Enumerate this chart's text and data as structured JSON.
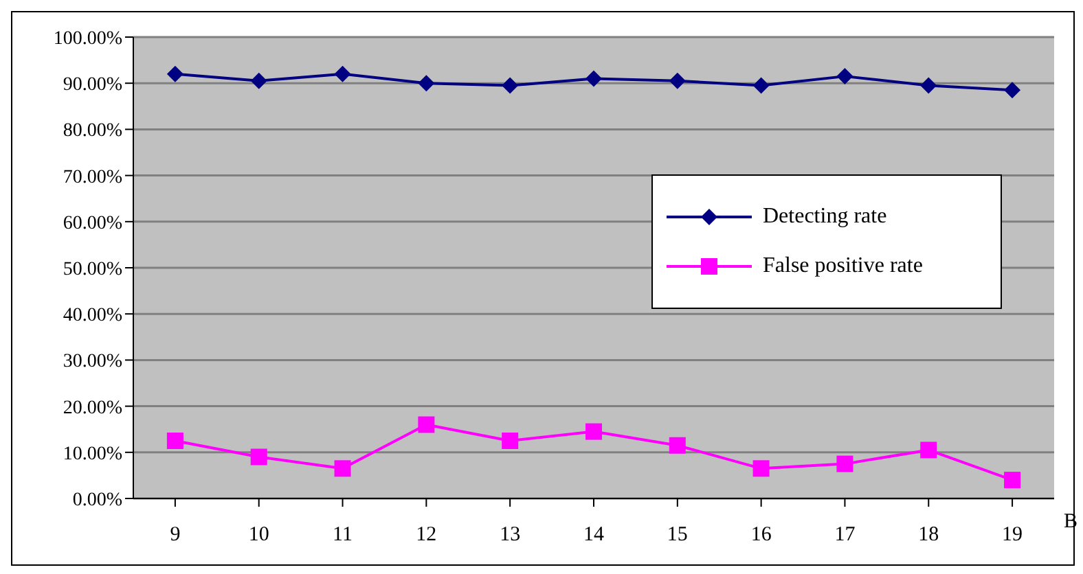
{
  "chart_data": {
    "type": "line",
    "xlabel": "B",
    "categories": [
      "9",
      "10",
      "11",
      "12",
      "13",
      "14",
      "15",
      "16",
      "17",
      "18",
      "19"
    ],
    "series": [
      {
        "name": "Detecting rate",
        "color": "#000080",
        "marker": "diamond",
        "values": [
          92,
          90.5,
          92,
          90,
          89.5,
          91,
          90.5,
          89.5,
          91.5,
          89.5,
          88.5
        ]
      },
      {
        "name": "False positive rate",
        "color": "#ff00ff",
        "marker": "square",
        "values": [
          12.5,
          9,
          6.5,
          16,
          12.5,
          14.5,
          11.5,
          6.5,
          7.5,
          10.5,
          4
        ]
      }
    ],
    "ylim": [
      0,
      100
    ],
    "yticks": [
      {
        "value": 0,
        "label": "0.00%"
      },
      {
        "value": 10,
        "label": "10.00%"
      },
      {
        "value": 20,
        "label": "20.00%"
      },
      {
        "value": 30,
        "label": "30.00%"
      },
      {
        "value": 40,
        "label": "40.00%"
      },
      {
        "value": 50,
        "label": "50.00%"
      },
      {
        "value": 60,
        "label": "60.00%"
      },
      {
        "value": 70,
        "label": "70.00%"
      },
      {
        "value": 80,
        "label": "80.00%"
      },
      {
        "value": 90,
        "label": "90.00%"
      },
      {
        "value": 100,
        "label": "100.00%"
      }
    ],
    "grid": "y",
    "legend": "right",
    "line_style": "solid"
  }
}
